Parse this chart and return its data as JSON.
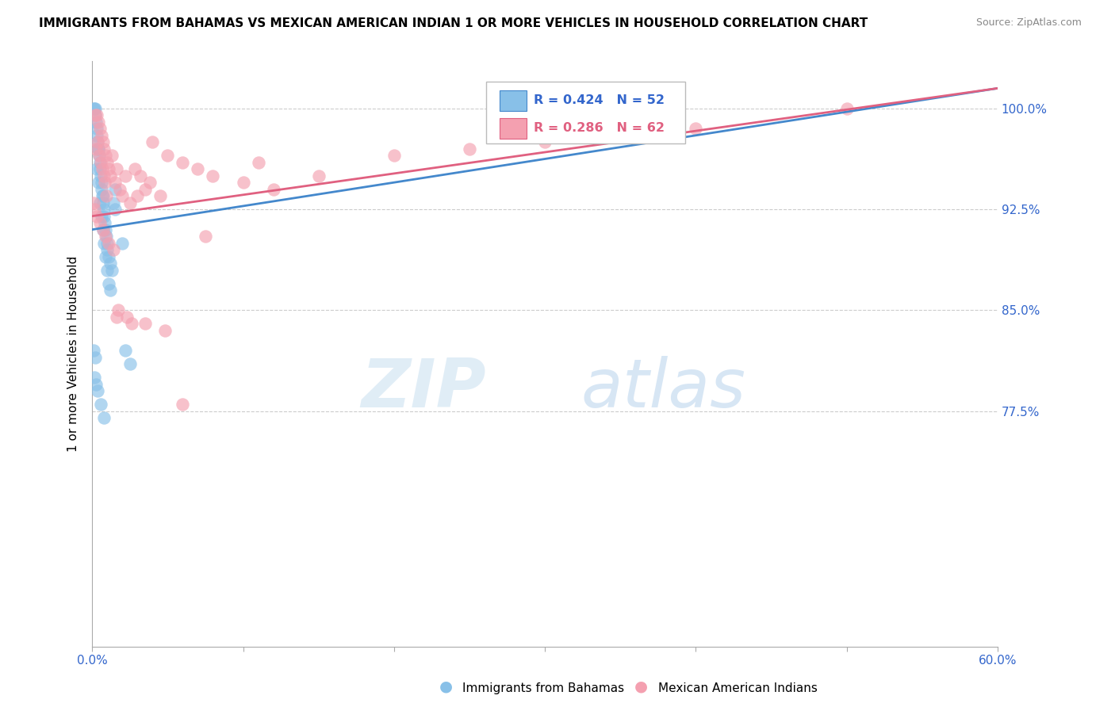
{
  "title": "IMMIGRANTS FROM BAHAMAS VS MEXICAN AMERICAN INDIAN 1 OR MORE VEHICLES IN HOUSEHOLD CORRELATION CHART",
  "source": "Source: ZipAtlas.com",
  "ylabel": "1 or more Vehicles in Household",
  "yticks": [
    77.5,
    85.0,
    92.5,
    100.0
  ],
  "ytick_labels": [
    "77.5%",
    "85.0%",
    "92.5%",
    "100.0%"
  ],
  "xmin": 0.0,
  "xmax": 60.0,
  "ymin": 60.0,
  "ymax": 103.5,
  "legend_label1": "Immigrants from Bahamas",
  "legend_label2": "Mexican American Indians",
  "R1": 0.424,
  "N1": 52,
  "R2": 0.286,
  "N2": 62,
  "color1": "#88c0e8",
  "color2": "#f4a0b0",
  "trendline1_color": "#4488cc",
  "trendline2_color": "#e06080",
  "watermark_zip": "ZIP",
  "watermark_atlas": "atlas",
  "blue_x": [
    0.1,
    0.15,
    0.2,
    0.2,
    0.25,
    0.3,
    0.3,
    0.35,
    0.4,
    0.4,
    0.45,
    0.5,
    0.5,
    0.55,
    0.6,
    0.6,
    0.65,
    0.7,
    0.7,
    0.75,
    0.8,
    0.85,
    0.9,
    0.95,
    1.0,
    1.0,
    1.1,
    1.2,
    1.3,
    1.4,
    1.5,
    0.1,
    0.2,
    0.3,
    0.4,
    0.5,
    0.6,
    0.7,
    0.8,
    0.9,
    1.0,
    1.1,
    1.2,
    1.5,
    2.0,
    2.2,
    2.5,
    0.15,
    0.25,
    0.35,
    0.55,
    0.75
  ],
  "blue_y": [
    100.0,
    100.0,
    100.0,
    99.5,
    99.0,
    98.5,
    98.0,
    97.5,
    97.0,
    97.0,
    96.5,
    96.0,
    95.5,
    95.0,
    94.5,
    94.0,
    93.5,
    93.5,
    93.0,
    92.5,
    92.0,
    91.5,
    91.0,
    90.5,
    90.0,
    89.5,
    89.0,
    88.5,
    88.0,
    93.0,
    92.5,
    82.0,
    81.5,
    95.5,
    94.5,
    93.0,
    92.0,
    91.0,
    90.0,
    89.0,
    88.0,
    87.0,
    86.5,
    94.0,
    90.0,
    82.0,
    81.0,
    80.0,
    79.5,
    79.0,
    78.0,
    77.0
  ],
  "pink_x": [
    0.1,
    0.2,
    0.3,
    0.4,
    0.5,
    0.6,
    0.7,
    0.8,
    0.9,
    1.0,
    1.1,
    1.2,
    1.5,
    1.8,
    2.0,
    2.5,
    3.0,
    3.5,
    4.0,
    5.0,
    6.0,
    7.0,
    8.0,
    10.0,
    12.0,
    15.0,
    20.0,
    25.0,
    30.0,
    40.0,
    50.0,
    0.15,
    0.25,
    0.35,
    0.45,
    0.55,
    0.65,
    0.75,
    0.85,
    0.95,
    1.3,
    1.6,
    2.2,
    2.8,
    3.2,
    3.8,
    4.5,
    0.3,
    0.5,
    0.7,
    0.9,
    1.1,
    1.4,
    1.7,
    2.3,
    3.5,
    4.8,
    7.5,
    1.6,
    2.6,
    6.0,
    11.0
  ],
  "pink_y": [
    93.0,
    99.5,
    99.5,
    99.0,
    98.5,
    98.0,
    97.5,
    97.0,
    96.5,
    96.0,
    95.5,
    95.0,
    94.5,
    94.0,
    93.5,
    93.0,
    93.5,
    94.0,
    97.5,
    96.5,
    96.0,
    95.5,
    95.0,
    94.5,
    94.0,
    95.0,
    96.5,
    97.0,
    97.5,
    98.5,
    100.0,
    92.5,
    97.0,
    97.5,
    96.5,
    96.0,
    95.5,
    95.0,
    94.5,
    93.5,
    96.5,
    95.5,
    95.0,
    95.5,
    95.0,
    94.5,
    93.5,
    92.0,
    91.5,
    91.0,
    90.5,
    90.0,
    89.5,
    85.0,
    84.5,
    84.0,
    83.5,
    90.5,
    84.5,
    84.0,
    78.0,
    96.0
  ]
}
